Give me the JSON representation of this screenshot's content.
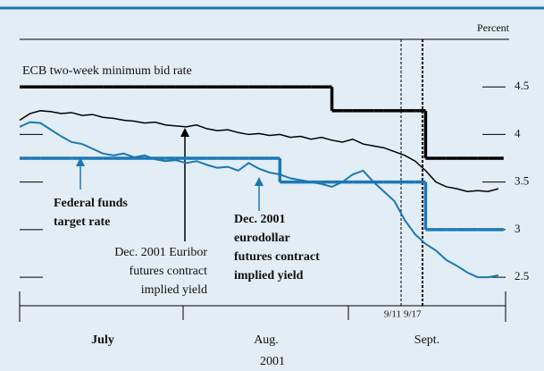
{
  "chart_data": {
    "type": "line",
    "y_unit": "Percent",
    "ylim": [
      2.2,
      5.0
    ],
    "yticks": [
      2.5,
      3.0,
      3.5,
      4.0,
      4.5
    ],
    "x_labels": [
      "July",
      "Aug.",
      "Sept."
    ],
    "x_title": "2001",
    "events": [
      "9/11",
      "9/17"
    ],
    "series": [
      {
        "label_lines": [
          "ECB two-week minimum bid rate"
        ],
        "color": "#000000",
        "step": true,
        "width": 3.5,
        "bold": false,
        "values": [
          4.5,
          4.5,
          4.5,
          4.5,
          4.5,
          4.5,
          4.5,
          4.5,
          4.5,
          4.5,
          4.5,
          4.5,
          4.5,
          4.5,
          4.5,
          4.5,
          4.5,
          4.5,
          4.5,
          4.5,
          4.5,
          4.5,
          4.5,
          4.5,
          4.5,
          4.5,
          4.5,
          4.5,
          4.5,
          4.5,
          4.25,
          4.25,
          4.25,
          4.25,
          4.25,
          4.25,
          4.25,
          4.25,
          4.25,
          3.75,
          3.75,
          3.75,
          3.75,
          3.75,
          3.75,
          3.75,
          3.75
        ]
      },
      {
        "label_lines": [
          "Federal funds",
          "target rate"
        ],
        "color": "#1b78b4",
        "step": true,
        "width": 3.5,
        "bold": true,
        "values": [
          3.75,
          3.75,
          3.75,
          3.75,
          3.75,
          3.75,
          3.75,
          3.75,
          3.75,
          3.75,
          3.75,
          3.75,
          3.75,
          3.75,
          3.75,
          3.75,
          3.75,
          3.75,
          3.75,
          3.75,
          3.75,
          3.75,
          3.75,
          3.75,
          3.75,
          3.5,
          3.5,
          3.5,
          3.5,
          3.5,
          3.5,
          3.5,
          3.5,
          3.5,
          3.5,
          3.5,
          3.5,
          3.5,
          3.5,
          3.0,
          3.0,
          3.0,
          3.0,
          3.0,
          3.0,
          3.0,
          3.0
        ]
      },
      {
        "label_lines": [
          "Dec. 2001 Euribor",
          "futures contract",
          "implied yield"
        ],
        "color": "#000000",
        "step": false,
        "width": 1.5,
        "bold": false,
        "values": [
          4.15,
          4.22,
          4.25,
          4.24,
          4.22,
          4.23,
          4.2,
          4.21,
          4.18,
          4.17,
          4.15,
          4.14,
          4.12,
          4.13,
          4.1,
          4.09,
          4.08,
          4.1,
          4.06,
          4.04,
          4.05,
          4.02,
          4.0,
          4.01,
          3.99,
          4.0,
          3.97,
          3.98,
          3.95,
          3.97,
          3.94,
          3.92,
          3.95,
          3.9,
          3.88,
          3.86,
          3.82,
          3.78,
          3.72,
          3.62,
          3.5,
          3.45,
          3.43,
          3.4,
          3.41,
          3.4,
          3.43
        ]
      },
      {
        "label_lines": [
          "Dec. 2001",
          "eurodollar",
          "futures contract",
          "implied yield"
        ],
        "color": "#1b78b4",
        "step": false,
        "width": 2,
        "bold": true,
        "values": [
          4.08,
          4.13,
          4.12,
          4.05,
          3.98,
          3.92,
          3.9,
          3.85,
          3.8,
          3.78,
          3.8,
          3.76,
          3.78,
          3.74,
          3.72,
          3.73,
          3.7,
          3.72,
          3.68,
          3.65,
          3.66,
          3.62,
          3.7,
          3.64,
          3.6,
          3.58,
          3.54,
          3.52,
          3.5,
          3.48,
          3.45,
          3.5,
          3.58,
          3.62,
          3.5,
          3.4,
          3.3,
          3.1,
          2.95,
          2.85,
          2.78,
          2.68,
          2.62,
          2.55,
          2.5,
          2.5,
          2.52
        ]
      }
    ]
  }
}
